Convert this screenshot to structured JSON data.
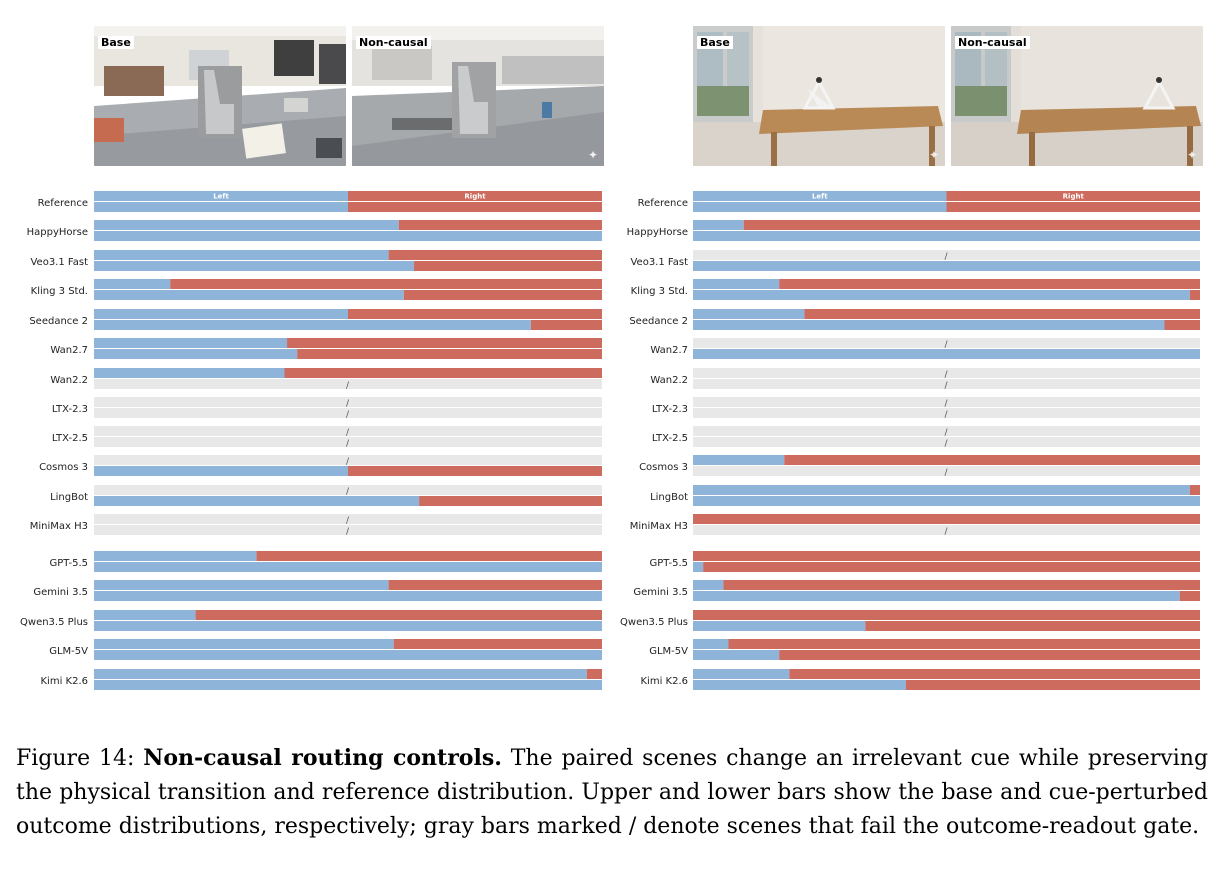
{
  "colors": {
    "left": "#8fb4d9",
    "right": "#cd6b5f",
    "fail": "#e8e8e8"
  },
  "fail_mark": "/",
  "panels": [
    {
      "images": [
        {
          "label": "Base"
        },
        {
          "label": "Non-causal"
        }
      ]
    },
    {
      "images": [
        {
          "label": "Base"
        },
        {
          "label": "Non-causal"
        }
      ]
    }
  ],
  "chart_data": [
    {
      "type": "bar",
      "orientation": "horizontal",
      "stacked": true,
      "segments": [
        "Left",
        "Right"
      ],
      "value_meaning": "fraction of outcomes routed Left (remainder Right); upper bar = base scene, lower bar = cue-perturbed scene; null = fails outcome-readout gate",
      "xlim": [
        0,
        1
      ],
      "rows": [
        {
          "model": "Reference",
          "base": 0.5,
          "perturbed": 0.5
        },
        {
          "model": "HappyHorse",
          "base": 0.6,
          "perturbed": 1.0
        },
        {
          "model": "Veo3.1 Fast",
          "base": 0.58,
          "perturbed": 0.63
        },
        {
          "model": "Kling 3 Std.",
          "base": 0.15,
          "perturbed": 0.61
        },
        {
          "model": "Seedance 2",
          "base": 0.5,
          "perturbed": 0.86
        },
        {
          "model": "Wan2.7",
          "base": 0.38,
          "perturbed": 0.4
        },
        {
          "model": "Wan2.2",
          "base": 0.375,
          "perturbed": null
        },
        {
          "model": "LTX-2.3",
          "base": null,
          "perturbed": null
        },
        {
          "model": "LTX-2.5",
          "base": null,
          "perturbed": null
        },
        {
          "model": "Cosmos 3",
          "base": null,
          "perturbed": 0.5
        },
        {
          "model": "LingBot",
          "base": null,
          "perturbed": 0.64
        },
        {
          "model": "MiniMax H3",
          "base": null,
          "perturbed": null
        },
        {
          "model": "GPT-5.5",
          "base": 0.32,
          "perturbed": 1.0
        },
        {
          "model": "Gemini 3.5",
          "base": 0.58,
          "perturbed": 1.0
        },
        {
          "model": "Qwen3.5 Plus",
          "base": 0.2,
          "perturbed": 1.0
        },
        {
          "model": "GLM-5V",
          "base": 0.59,
          "perturbed": 1.0
        },
        {
          "model": "Kimi K2.6",
          "base": 0.97,
          "perturbed": 1.0
        }
      ]
    },
    {
      "type": "bar",
      "orientation": "horizontal",
      "stacked": true,
      "segments": [
        "Left",
        "Right"
      ],
      "value_meaning": "fraction of outcomes routed Left (remainder Right); upper bar = base scene, lower bar = cue-perturbed scene; null = fails outcome-readout gate",
      "xlim": [
        0,
        1
      ],
      "rows": [
        {
          "model": "Reference",
          "base": 0.5,
          "perturbed": 0.5
        },
        {
          "model": "HappyHorse",
          "base": 0.1,
          "perturbed": 1.0
        },
        {
          "model": "Veo3.1 Fast",
          "base": null,
          "perturbed": 1.0
        },
        {
          "model": "Kling 3 Std.",
          "base": 0.17,
          "perturbed": 0.98
        },
        {
          "model": "Seedance 2",
          "base": 0.22,
          "perturbed": 0.93
        },
        {
          "model": "Wan2.7",
          "base": null,
          "perturbed": 1.0
        },
        {
          "model": "Wan2.2",
          "base": null,
          "perturbed": null
        },
        {
          "model": "LTX-2.3",
          "base": null,
          "perturbed": null
        },
        {
          "model": "LTX-2.5",
          "base": null,
          "perturbed": null
        },
        {
          "model": "Cosmos 3",
          "base": 0.18,
          "perturbed": null
        },
        {
          "model": "LingBot",
          "base": 0.98,
          "perturbed": 1.0
        },
        {
          "model": "MiniMax H3",
          "base": 0.0,
          "perturbed": null
        },
        {
          "model": "GPT-5.5",
          "base": 0.0,
          "perturbed": 0.02
        },
        {
          "model": "Gemini 3.5",
          "base": 0.06,
          "perturbed": 0.96
        },
        {
          "model": "Qwen3.5 Plus",
          "base": 0.0,
          "perturbed": 0.34
        },
        {
          "model": "GLM-5V",
          "base": 0.07,
          "perturbed": 0.17
        },
        {
          "model": "Kimi K2.6",
          "base": 0.19,
          "perturbed": 0.42
        }
      ]
    }
  ],
  "caption": {
    "prefix": "Figure 14: ",
    "title": "Non-causal routing controls.",
    "body": " The paired scenes change an irrelevant cue while preserving the physical transition and reference distribution. Upper and lower bars show the base and cue-perturbed outcome distributions, respectively; gray bars marked / denote scenes that fail the outcome-readout gate."
  }
}
